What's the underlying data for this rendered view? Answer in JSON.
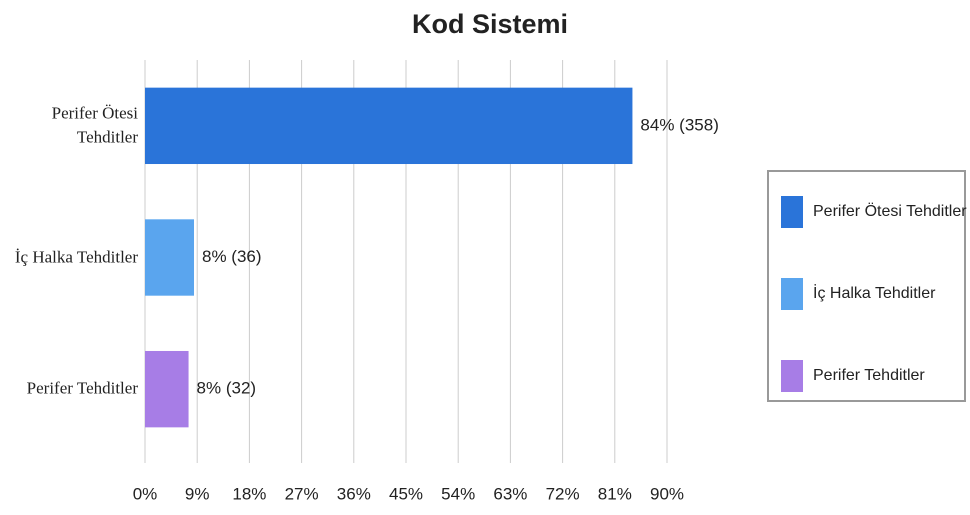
{
  "chart_data": {
    "type": "hbar",
    "title": "Kod Sistemi",
    "categories": [
      "Perifer Ötesi Tehditler",
      "İç Halka Tehditler",
      "Perifer Tehditler"
    ],
    "values": [
      84.04,
      8.45,
      7.51
    ],
    "value_labels": [
      "84% (358)",
      "8% (36)",
      "8% (32)"
    ],
    "colors": [
      "#2a74d9",
      "#5aa5ee",
      "#a77de6"
    ],
    "xlim": [
      0,
      90
    ],
    "xticks": [
      {
        "value": 0,
        "label": "0%"
      },
      {
        "value": 9,
        "label": "9%"
      },
      {
        "value": 18,
        "label": "18%"
      },
      {
        "value": 27,
        "label": "27%"
      },
      {
        "value": 36,
        "label": "36%"
      },
      {
        "value": 45,
        "label": "45%"
      },
      {
        "value": 54,
        "label": "54%"
      },
      {
        "value": 63,
        "label": "63%"
      },
      {
        "value": 72,
        "label": "72%"
      },
      {
        "value": 81,
        "label": "81%"
      },
      {
        "value": 90,
        "label": "90%"
      }
    ],
    "grid": true,
    "legend": "right"
  }
}
